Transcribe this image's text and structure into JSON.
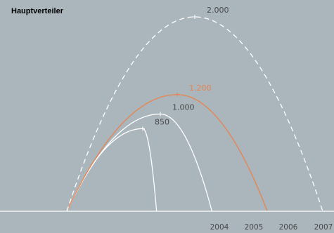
{
  "chart_data": {
    "type": "line",
    "title": "Hauptverteiler",
    "xlabel": "",
    "ylabel": "",
    "x_tick_labels": [
      "2004",
      "2005",
      "2006",
      "2007"
    ],
    "xlim": [
      2002.38,
      2007.15
    ],
    "ylim": [
      0,
      2200
    ],
    "grid": false,
    "legend": "none",
    "series": [
      {
        "label": "850",
        "peak": 850,
        "start_year": 2002.38,
        "end_year": 2004.0,
        "style": "solid",
        "color": "#ffffff",
        "label_color": "#4a4a4a"
      },
      {
        "label": "1.000",
        "peak": 1000,
        "start_year": 2002.38,
        "end_year": 2005.0,
        "style": "solid",
        "color": "#ffffff",
        "label_color": "#4a4a4a"
      },
      {
        "label": "1.200",
        "peak": 1200,
        "start_year": 2002.38,
        "end_year": 2006.0,
        "style": "solid",
        "color": "#e8834e",
        "label_color": "#e8834e"
      },
      {
        "label": "2.000",
        "peak": 2000,
        "start_year": 2002.38,
        "end_year": 2007.0,
        "style": "dashed",
        "color": "#ffffff",
        "label_color": "#4a4a4a"
      }
    ],
    "colors": {
      "background": "#aab5bc",
      "baseline": "#ffffff",
      "title": "#4a4a4a",
      "tick": "#4a4a4a",
      "accent": "#e8834e"
    }
  }
}
